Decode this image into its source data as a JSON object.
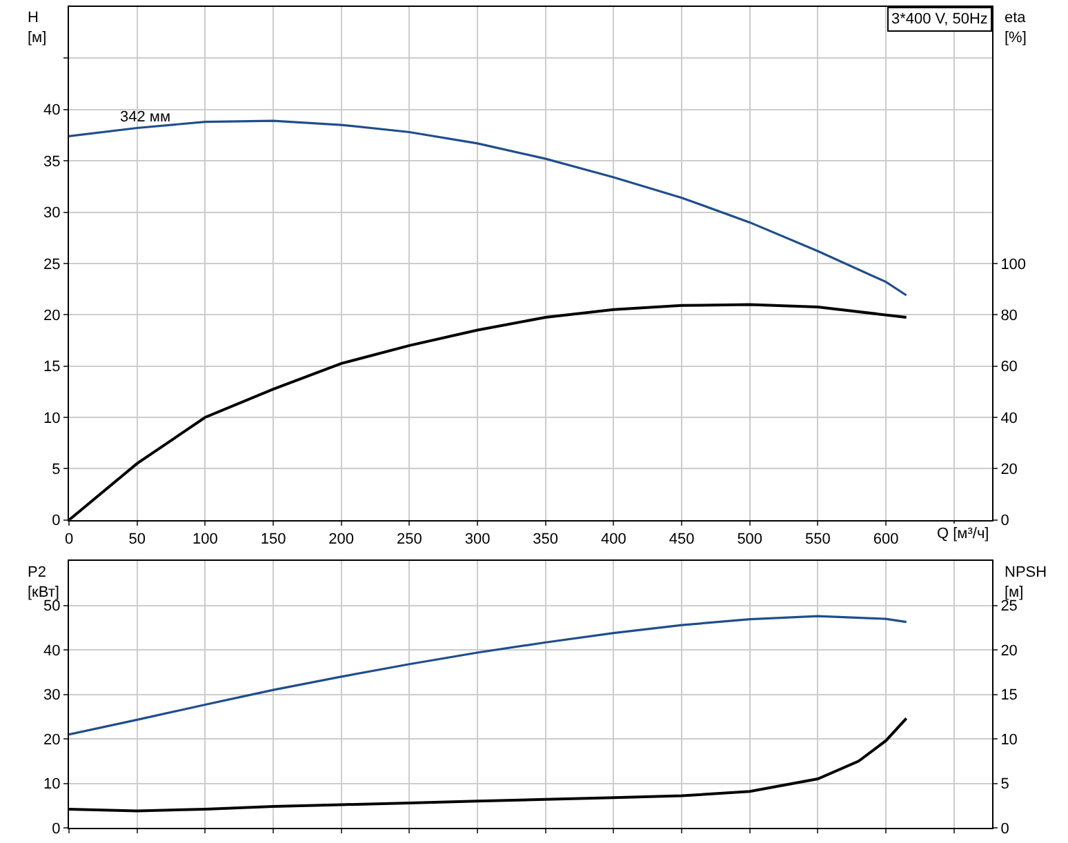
{
  "chart_data": [
    {
      "type": "line",
      "title": "3*400 V, 50Hz",
      "xlabel": "Q [м³/ч]",
      "ylabel": "H\n[м]",
      "y2label": "eta\n[%]",
      "xlim": [
        0,
        678
      ],
      "xticks": [
        0,
        50,
        100,
        150,
        200,
        250,
        300,
        350,
        400,
        450,
        500,
        550,
        600,
        {
          "value": 650,
          "label": null
        }
      ],
      "ylim": [
        0,
        50
      ],
      "yticks": [
        0,
        5,
        10,
        15,
        20,
        25,
        30,
        35,
        40,
        {
          "value": 45,
          "label": null
        }
      ],
      "y2lim": [
        0,
        200
      ],
      "y2ticks": [
        0,
        20,
        40,
        60,
        80,
        100
      ],
      "grid": true,
      "line_style": "solid",
      "marker": "none",
      "annotations": [
        {
          "text": "342 мм",
          "x": 35,
          "y": 38.2
        }
      ],
      "series": [
        {
          "color": "#1f4e8c",
          "x": [
            0,
            50,
            100,
            150,
            200,
            250,
            300,
            350,
            400,
            450,
            500,
            550,
            600,
            615
          ],
          "values": [
            37.4,
            38.2,
            38.8,
            38.9,
            38.5,
            37.8,
            36.7,
            35.2,
            33.4,
            31.4,
            29.0,
            26.2,
            23.2,
            21.9
          ]
        },
        {
          "color": "#000000",
          "axis": "y2",
          "x": [
            0,
            50,
            100,
            150,
            200,
            250,
            300,
            350,
            400,
            450,
            500,
            550,
            615
          ],
          "values": [
            0,
            22,
            40,
            51,
            61,
            68,
            74,
            79,
            82,
            83.6,
            84,
            83,
            79
          ]
        }
      ]
    },
    {
      "type": "line",
      "ylabel": "P2\n[кВт]",
      "y2label": "NPSH\n[м]",
      "xlim": [
        0,
        678
      ],
      "xticks": [
        0,
        50,
        100,
        150,
        200,
        250,
        300,
        350,
        400,
        450,
        500,
        550,
        600,
        650
      ],
      "ylim": [
        0,
        60
      ],
      "yticks": [
        0,
        10,
        20,
        30,
        40,
        50
      ],
      "y2lim": [
        0,
        30
      ],
      "y2ticks": [
        0,
        5,
        10,
        15,
        20,
        25
      ],
      "tick_labels": "y",
      "grid": true,
      "line_style": "solid",
      "marker": "none",
      "series": [
        {
          "color": "#1f4e8c",
          "x": [
            0,
            50,
            100,
            150,
            200,
            250,
            300,
            350,
            400,
            450,
            500,
            550,
            600,
            615
          ],
          "values": [
            21,
            24.3,
            27.7,
            31,
            34,
            36.8,
            39.4,
            41.7,
            43.8,
            45.6,
            46.9,
            47.6,
            47,
            46.3
          ]
        },
        {
          "color": "#000000",
          "axis": "y2",
          "x": [
            0,
            50,
            100,
            150,
            200,
            250,
            300,
            350,
            400,
            450,
            500,
            550,
            580,
            600,
            615
          ],
          "values": [
            2.1,
            1.9,
            2.1,
            2.4,
            2.6,
            2.8,
            3.0,
            3.2,
            3.4,
            3.6,
            4.1,
            5.5,
            7.5,
            9.8,
            12.3
          ]
        }
      ]
    }
  ]
}
